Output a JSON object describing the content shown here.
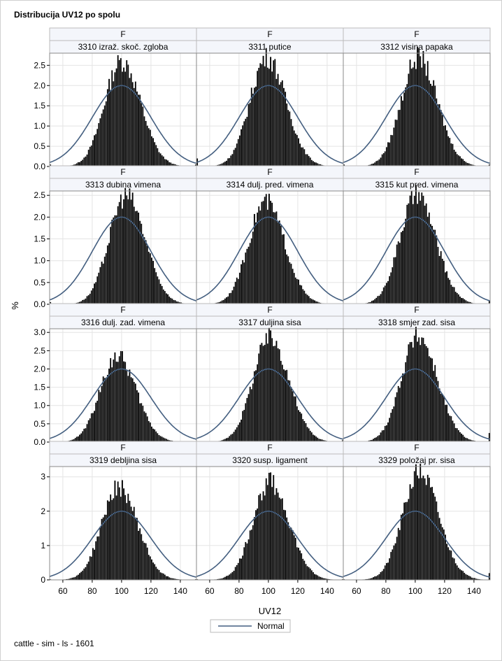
{
  "title": "Distribucija UV12 po spolu",
  "footnote": "cattle - sim - ls - 1601",
  "chart_data": {
    "type": "histogram-panel",
    "xlabel": "UV12",
    "ylabel": "%",
    "xlim": [
      51,
      151
    ],
    "xticks": [
      60,
      80,
      100,
      120,
      140
    ],
    "legend": {
      "position": "bottom",
      "entries": [
        "Normal"
      ]
    },
    "colors": {
      "bars": "#000000",
      "normal_curve": "#445f80",
      "header_fill": "#f4f6fb",
      "grid": "#e4e4e4"
    },
    "normal": {
      "mean": 100,
      "sd": 20,
      "peak_pct": 2.0
    },
    "rows": [
      {
        "ylim": [
          0,
          2.8
        ],
        "yticks": [
          "0.0",
          "0.5",
          "1.0",
          "1.5",
          "2.0",
          "2.5"
        ]
      },
      {
        "ylim": [
          0,
          2.6
        ],
        "yticks": [
          "0.0",
          "0.5",
          "1.0",
          "1.5",
          "2.0",
          "2.5"
        ]
      },
      {
        "ylim": [
          0,
          3.1
        ],
        "yticks": [
          "0.0",
          "0.5",
          "1.0",
          "1.5",
          "2.0",
          "2.5",
          "3.0"
        ]
      },
      {
        "ylim": [
          0,
          3.3
        ],
        "yticks": [
          "0",
          "1",
          "2",
          "3"
        ]
      }
    ],
    "panels": [
      {
        "sex": "F",
        "label": "3310 izraž. skoč. zgloba",
        "peak_x": 100,
        "peak_pct": 2.6,
        "edge_left_pct": 0.05,
        "edge_right_pct": 0.05
      },
      {
        "sex": "F",
        "label": "3311 putice",
        "peak_x": 99,
        "peak_pct": 2.7,
        "edge_left_pct": 0.2,
        "edge_right_pct": 0.02
      },
      {
        "sex": "F",
        "label": "3312 visina papaka",
        "peak_x": 102,
        "peak_pct": 2.7,
        "edge_left_pct": 0.05,
        "edge_right_pct": 0.05
      },
      {
        "sex": "F",
        "label": "3313 dubina vimena",
        "peak_x": 103,
        "peak_pct": 2.5,
        "edge_left_pct": 0.05,
        "edge_right_pct": 0.02
      },
      {
        "sex": "F",
        "label": "3314 dulj. pred. vimena",
        "peak_x": 98,
        "peak_pct": 2.35,
        "edge_left_pct": 0.02,
        "edge_right_pct": 0.02
      },
      {
        "sex": "F",
        "label": "3315 kut pred. vimena",
        "peak_x": 101,
        "peak_pct": 2.5,
        "edge_left_pct": 0.02,
        "edge_right_pct": 0.08
      },
      {
        "sex": "F",
        "label": "3316 dulj. zad. vimena",
        "peak_x": 97,
        "peak_pct": 2.35,
        "edge_left_pct": 0.02,
        "edge_right_pct": 0.02
      },
      {
        "sex": "F",
        "label": "3317 duljina sisa",
        "peak_x": 101,
        "peak_pct": 2.85,
        "edge_left_pct": 0.02,
        "edge_right_pct": 0.05
      },
      {
        "sex": "F",
        "label": "3318 smjer zad. sisa",
        "peak_x": 102,
        "peak_pct": 2.9,
        "edge_left_pct": 0.02,
        "edge_right_pct": 0.25
      },
      {
        "sex": "F",
        "label": "3319 debljina sisa",
        "peak_x": 98,
        "peak_pct": 2.7,
        "edge_left_pct": 0.02,
        "edge_right_pct": 0.02
      },
      {
        "sex": "F",
        "label": "3320 susp. ligament",
        "peak_x": 101,
        "peak_pct": 2.85,
        "edge_left_pct": 0.02,
        "edge_right_pct": 0.02
      },
      {
        "sex": "F",
        "label": "3329 položaj pr. sisa",
        "peak_x": 103,
        "peak_pct": 3.15,
        "edge_left_pct": 0.02,
        "edge_right_pct": 0.2
      }
    ]
  }
}
